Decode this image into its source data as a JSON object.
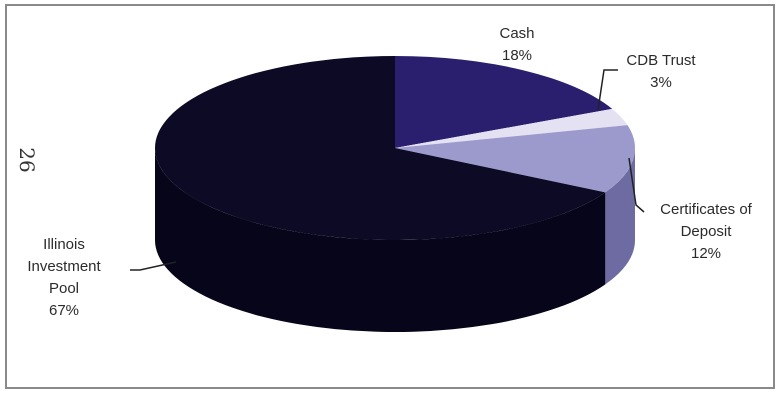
{
  "margin_mark": "26",
  "chart_data": {
    "type": "pie",
    "style": "3d",
    "categories": [
      "Cash",
      "CDB Trust",
      "Certificates of Deposit",
      "Illinois Investment Pool"
    ],
    "values": [
      18,
      3,
      12,
      67
    ],
    "colors": [
      "#2a1f6e",
      "#e4e2f2",
      "#9c9acd",
      "#0c0a24"
    ],
    "side_colors": [
      "#1a1348",
      "#b9b7d2",
      "#6d6ba2",
      "#06051a"
    ],
    "labels": [
      {
        "lines": [
          "Cash",
          "18%"
        ]
      },
      {
        "lines": [
          "CDB Trust",
          "3%"
        ]
      },
      {
        "lines": [
          "Certificates of",
          "Deposit",
          "12%"
        ]
      },
      {
        "lines": [
          "Illinois",
          "Investment",
          "Pool",
          "67%"
        ]
      }
    ]
  }
}
